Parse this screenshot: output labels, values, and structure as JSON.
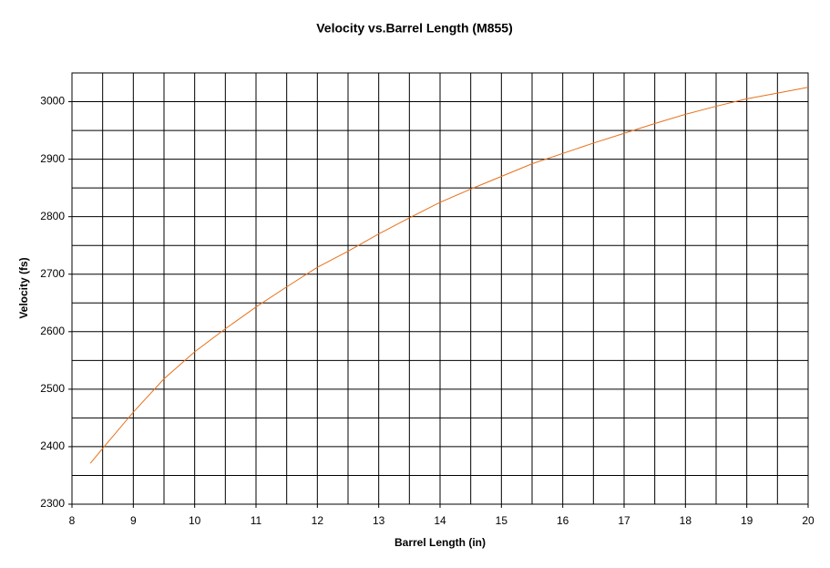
{
  "chart_data": {
    "type": "line",
    "title": "Velocity vs.Barrel Length (M855)",
    "x_label": "Barrel Length (in)",
    "y_label": "Velocity (fs)",
    "x": [
      8.3,
      8.5,
      9,
      9.5,
      10,
      10.5,
      11,
      11.5,
      12,
      12.5,
      13,
      13.5,
      14,
      14.5,
      15,
      15.5,
      16,
      16.5,
      17,
      17.5,
      18,
      18.5,
      19,
      19.5,
      20
    ],
    "series": [
      {
        "color": "#e8701a",
        "values": [
          2371,
          2397,
          2460,
          2518,
          2565,
          2605,
          2643,
          2678,
          2712,
          2740,
          2770,
          2798,
          2825,
          2848,
          2870,
          2892,
          2910,
          2928,
          2945,
          2962,
          2978,
          2992,
          3005,
          3015,
          3025
        ]
      }
    ],
    "xlim": [
      8,
      20
    ],
    "xticks": [
      8,
      9,
      10,
      11,
      12,
      13,
      14,
      15,
      16,
      17,
      18,
      19,
      20
    ],
    "ylim": [
      2300,
      3050
    ],
    "yticks": [
      2300,
      2400,
      2500,
      2600,
      2700,
      2800,
      2900,
      3000
    ],
    "grid": true,
    "minor_grid": true
  }
}
